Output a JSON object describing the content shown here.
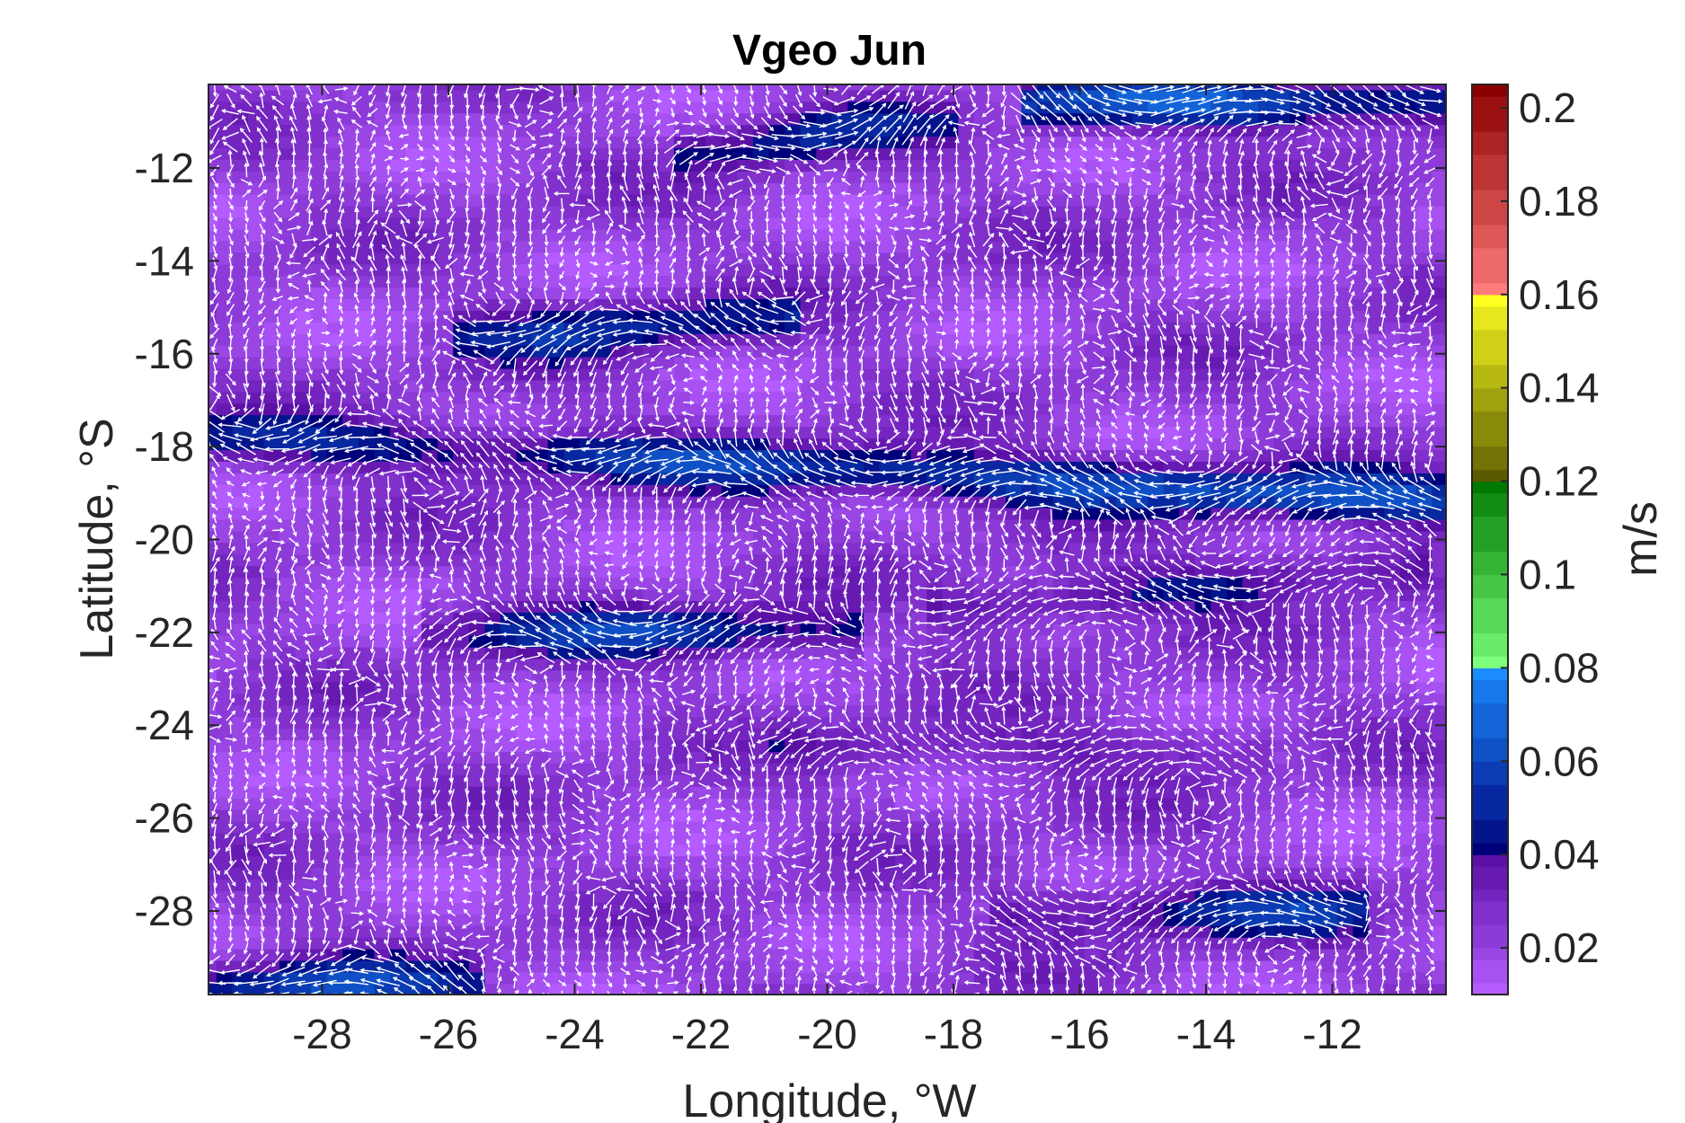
{
  "chart_data": {
    "type": "heatmap",
    "title": "Vgeo Jun",
    "xlabel": "Longitude, °W",
    "ylabel": "Latitude, °S",
    "xlim": [
      -29.8,
      -10.2
    ],
    "ylim": [
      -29.8,
      -10.2
    ],
    "xticks": [
      -28,
      -26,
      -24,
      -22,
      -20,
      -18,
      -16,
      -14,
      -12
    ],
    "yticks": [
      -12,
      -14,
      -16,
      -18,
      -20,
      -22,
      -24,
      -26,
      -28
    ],
    "colorbar": {
      "label": "m/s",
      "clim": [
        0.01,
        0.205
      ],
      "ticks": [
        0.02,
        0.04,
        0.06,
        0.08,
        0.1,
        0.12,
        0.14,
        0.16,
        0.18,
        0.2
      ],
      "tick_labels": [
        "0.02",
        "0.04",
        "0.06",
        "0.08",
        "0.1",
        "0.12",
        "0.14",
        "0.16",
        "0.18",
        "0.2"
      ],
      "bands": [
        {
          "range": [
            0.01,
            0.04
          ],
          "from": "#b45cff",
          "to": "#5a0fa5"
        },
        {
          "range": [
            0.04,
            0.08
          ],
          "from": "#00007a",
          "to": "#1a8cff"
        },
        {
          "range": [
            0.08,
            0.12
          ],
          "from": "#7cff7c",
          "to": "#007a00"
        },
        {
          "range": [
            0.12,
            0.16
          ],
          "from": "#5a5a00",
          "to": "#ffff22"
        },
        {
          "range": [
            0.16,
            0.205
          ],
          "from": "#ff7a7a",
          "to": "#8a0000"
        }
      ]
    },
    "grid": false,
    "vectors": "white arrows showing geostrophic velocity direction",
    "features": {
      "background_speed": 0.022,
      "jets": [
        {
          "lon_range": [
            -29.8,
            -10.2
          ],
          "lat_start": -17.8,
          "lat_end": -19.2,
          "peak_speed": 0.06,
          "peak_lon": -14,
          "direction": "westward"
        },
        {
          "lon_range": [
            -25.5,
            -20.5
          ],
          "lat_start": -22.0,
          "lat_end": -22.0,
          "peak_speed": 0.052,
          "peak_lon": -22.5,
          "direction": "westward"
        },
        {
          "lon_range": [
            -25,
            -21.5
          ],
          "lat_start": -15.6,
          "lat_end": -15.3,
          "peak_speed": 0.05,
          "peak_lon": -23.5,
          "direction": "westward"
        },
        {
          "lon_range": [
            -17.5,
            -11.5
          ],
          "lat_start": -21.5,
          "lat_end": -20.6,
          "peak_speed": 0.045,
          "peak_lon": -15,
          "direction": "westward"
        },
        {
          "lon_range": [
            -16.5,
            -12.5
          ],
          "lat_start": -28.0,
          "lat_end": -28.0,
          "peak_speed": 0.05,
          "peak_lon": -13.5,
          "direction": "westward"
        },
        {
          "lon_range": [
            -29.8,
            -26.5
          ],
          "lat_start": -29.6,
          "lat_end": -29.6,
          "peak_speed": 0.055,
          "peak_lon": -28,
          "direction": "westward"
        },
        {
          "lon_range": [
            -16,
            -10.2
          ],
          "lat_start": -10.6,
          "lat_end": -10.6,
          "peak_speed": 0.065,
          "peak_lon": -14,
          "direction": "eastward"
        },
        {
          "lon_range": [
            -21.5,
            -19.0
          ],
          "lat_start": -11.6,
          "lat_end": -11.0,
          "peak_speed": 0.048,
          "peak_lon": -20.5,
          "direction": "eastward"
        },
        {
          "lon_range": [
            -20,
            -14
          ],
          "lat_start": -24.5,
          "lat_end": -24.5,
          "peak_speed": 0.035,
          "peak_lon": -17,
          "direction": "westward"
        }
      ]
    }
  }
}
